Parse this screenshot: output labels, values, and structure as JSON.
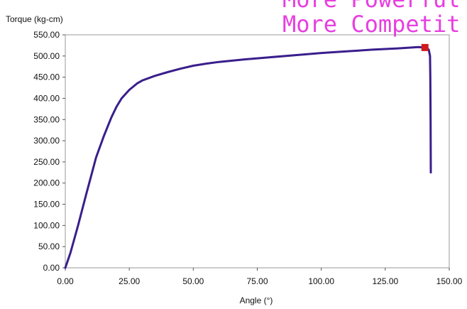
{
  "overlay": {
    "lines": [
      "More Powerful",
      "More Competit"
    ],
    "color": "#e83ee0"
  },
  "chart_data": {
    "type": "line",
    "title": "",
    "xlabel": "Angle (°)",
    "ylabel": "Torque (kg-cm)",
    "xlim": [
      0,
      150
    ],
    "ylim": [
      0,
      550
    ],
    "x_ticks": [
      "0.00",
      "25.00",
      "50.00",
      "75.00",
      "100.00",
      "125.00",
      "150.00"
    ],
    "y_ticks": [
      "0.00",
      "50.00",
      "100.00",
      "150.00",
      "200.00",
      "250.00",
      "300.00",
      "350.00",
      "400.00",
      "450.00",
      "500.00",
      "550.00"
    ],
    "grid": false,
    "series": [
      {
        "color": "#3a1e8c",
        "points": [
          [
            0,
            0
          ],
          [
            2,
            35
          ],
          [
            5,
            100
          ],
          [
            8,
            170
          ],
          [
            10,
            215
          ],
          [
            12,
            260
          ],
          [
            15,
            310
          ],
          [
            18,
            355
          ],
          [
            20,
            380
          ],
          [
            22,
            400
          ],
          [
            25,
            420
          ],
          [
            28,
            435
          ],
          [
            30,
            442
          ],
          [
            35,
            453
          ],
          [
            40,
            462
          ],
          [
            45,
            470
          ],
          [
            50,
            477
          ],
          [
            55,
            482
          ],
          [
            60,
            486
          ],
          [
            70,
            492
          ],
          [
            80,
            497
          ],
          [
            90,
            502
          ],
          [
            100,
            507
          ],
          [
            110,
            511
          ],
          [
            120,
            515
          ],
          [
            130,
            518
          ],
          [
            138,
            521
          ],
          [
            140,
            520
          ],
          [
            141,
            519
          ],
          [
            142,
            515
          ],
          [
            142.5,
            500
          ],
          [
            142.6,
            450
          ],
          [
            142.7,
            350
          ],
          [
            142.8,
            225
          ]
        ]
      }
    ],
    "markers": [
      {
        "x": 140.5,
        "y": 520,
        "color": "#d01c1c",
        "shape": "square"
      }
    ]
  }
}
